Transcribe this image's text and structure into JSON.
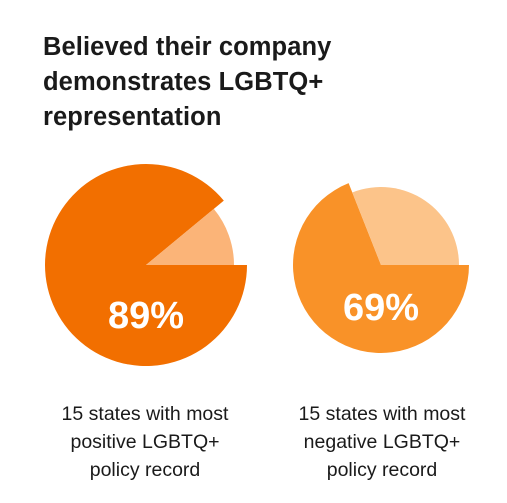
{
  "chart_data": {
    "type": "pie",
    "title_lines": [
      "Believed their company",
      "demonstrates LGBTQ+",
      "representation"
    ],
    "charts": [
      {
        "value": 89,
        "label": "89%",
        "caption_lines": [
          "15 states with most",
          "positive LGBTQ+",
          "policy record"
        ],
        "main_color": "#f26f00",
        "rest_color": "#fbb478"
      },
      {
        "value": 69,
        "label": "69%",
        "caption_lines": [
          "15 states with most",
          "negative LGBTQ+",
          "policy record"
        ],
        "main_color": "#f99228",
        "rest_color": "#fcc48a"
      }
    ]
  }
}
